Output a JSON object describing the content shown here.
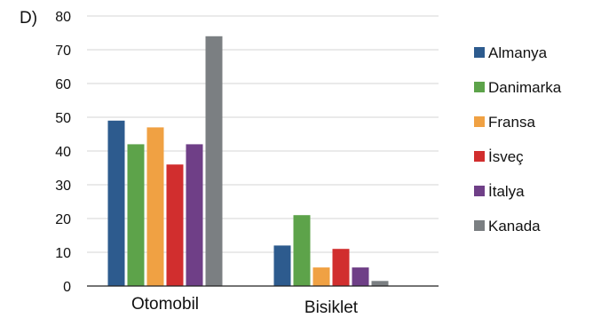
{
  "option_label": "D)",
  "chart_data": {
    "type": "bar",
    "categories": [
      "Otomobil",
      "Bisiklet"
    ],
    "series": [
      {
        "name": "Almanya",
        "values": [
          49,
          12
        ],
        "color": "#2d5b8e"
      },
      {
        "name": "Danimarka",
        "values": [
          42,
          21
        ],
        "color": "#5da34a"
      },
      {
        "name": "Fransa",
        "values": [
          47,
          5.5
        ],
        "color": "#f0a143"
      },
      {
        "name": "İsveç",
        "values": [
          36,
          11
        ],
        "color": "#d12e2e"
      },
      {
        "name": "İtalya",
        "values": [
          42,
          5.5
        ],
        "color": "#6f3f87"
      },
      {
        "name": "Kanada",
        "values": [
          74,
          1.5
        ],
        "color": "#7b7f82"
      }
    ],
    "ylim": [
      0,
      80
    ],
    "yticks": [
      0,
      10,
      20,
      30,
      40,
      50,
      60,
      70,
      80
    ],
    "grid": true,
    "legend_position": "right"
  }
}
